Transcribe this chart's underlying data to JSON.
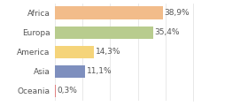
{
  "categories": [
    "Africa",
    "Europa",
    "America",
    "Asia",
    "Oceania"
  ],
  "values": [
    38.9,
    35.4,
    14.3,
    11.1,
    0.3
  ],
  "labels": [
    "38,9%",
    "35,4%",
    "14,3%",
    "11,1%",
    "0,3%"
  ],
  "bar_colors": [
    "#f2bc8a",
    "#b8cc8e",
    "#f5d47a",
    "#7e8fbe",
    "#e08080"
  ],
  "background_color": "#ffffff",
  "xlim": [
    0,
    50
  ],
  "bar_height": 0.65,
  "label_fontsize": 6.5,
  "tick_fontsize": 6.5
}
